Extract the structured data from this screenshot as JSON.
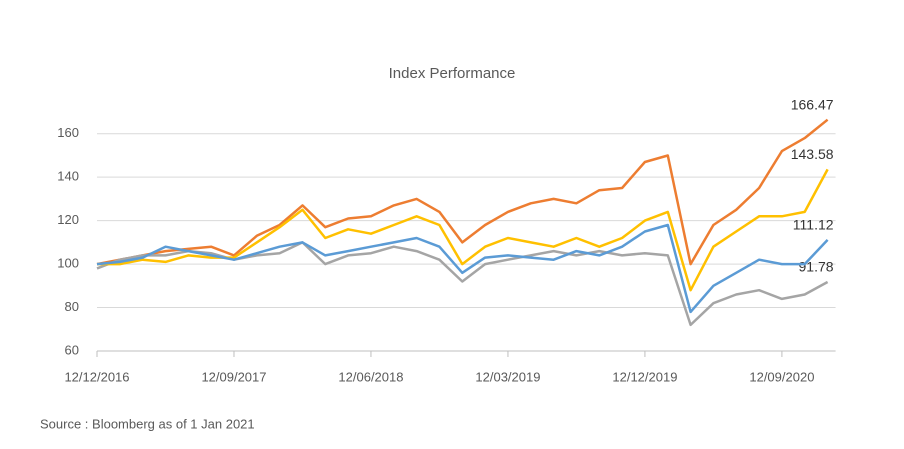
{
  "chart_data": {
    "type": "line",
    "title": "Index Performance",
    "source": "Source : Bloomberg as of 1 Jan 2021",
    "categories": [
      "12/12/2016",
      null,
      null,
      null,
      null,
      null,
      "12/09/2017",
      null,
      null,
      null,
      null,
      null,
      "12/06/2018",
      null,
      null,
      null,
      null,
      null,
      "12/03/2019",
      null,
      null,
      null,
      null,
      null,
      "12/12/2019",
      null,
      null,
      null,
      null,
      null,
      "12/09/2020",
      null,
      null
    ],
    "series": [
      {
        "color": "#ED7D31",
        "values": [
          100,
          102,
          104,
          106,
          107,
          108,
          104,
          113,
          118,
          127,
          117,
          121,
          122,
          127,
          130,
          124,
          110,
          118,
          124,
          128,
          130,
          128,
          134,
          135,
          147,
          150,
          100,
          118,
          125,
          135,
          152,
          158,
          166.47
        ]
      },
      {
        "color": "#A5A5A5",
        "values": [
          98,
          102,
          104,
          104,
          106,
          105,
          102,
          104,
          105,
          110,
          100,
          104,
          105,
          108,
          106,
          102,
          92,
          100,
          102,
          104,
          106,
          104,
          106,
          104,
          105,
          104,
          72,
          82,
          86,
          88,
          84,
          86,
          91.78
        ]
      },
      {
        "color": "#FFC000",
        "values": [
          100,
          100,
          102,
          101,
          104,
          103,
          103,
          110,
          117,
          125,
          112,
          116,
          114,
          118,
          122,
          118,
          100,
          108,
          112,
          110,
          108,
          112,
          108,
          112,
          120,
          124,
          88,
          108,
          115,
          122,
          122,
          124,
          143.58
        ]
      },
      {
        "color": "#5B9BD5",
        "values": [
          100,
          101,
          103,
          108,
          106,
          104,
          102,
          105,
          108,
          110,
          104,
          106,
          108,
          110,
          112,
          108,
          96,
          103,
          104,
          103,
          102,
          106,
          104,
          108,
          115,
          118,
          78,
          90,
          96,
          102,
          100,
          100,
          111.12
        ]
      }
    ],
    "ylim": [
      60,
      170
    ],
    "yticks": [
      60,
      80,
      100,
      120,
      140,
      160
    ],
    "grid": true
  }
}
